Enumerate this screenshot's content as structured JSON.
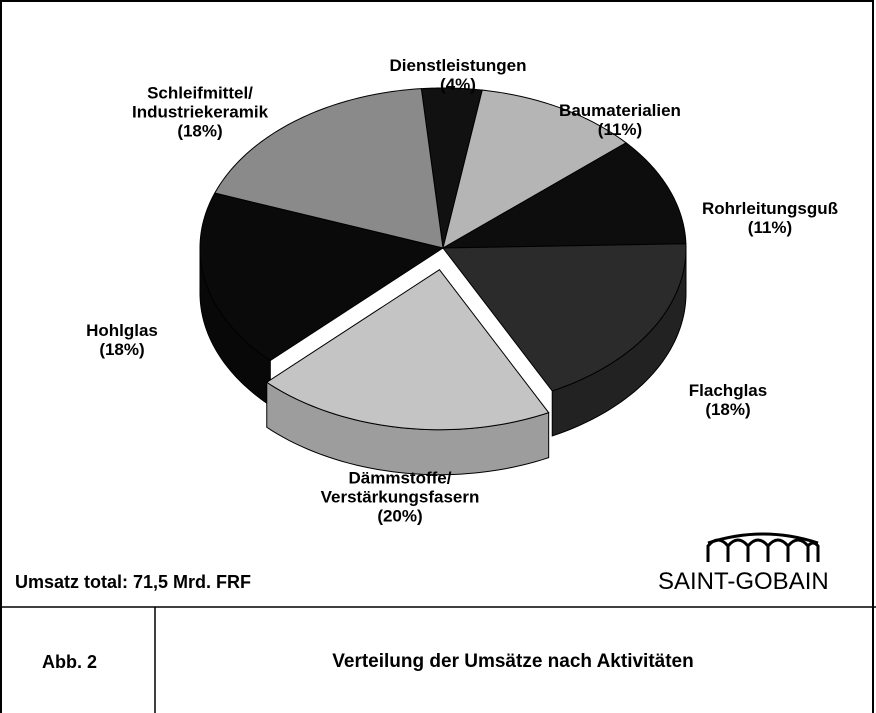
{
  "chart_data": {
    "type": "pie",
    "categories": [
      "Dienstleistungen",
      "Baumaterialien",
      "Rohrleitungsguß",
      "Flachglas",
      "Dämmstoffe/\nVerstärkungsfasern",
      "Hohlglas",
      "Schleifmittel/\nIndustriekeramik"
    ],
    "values": [
      4,
      11,
      11,
      18,
      20,
      18,
      18
    ],
    "value_labels": [
      "(4%)",
      "(11%)",
      "(11%)",
      "(18%)",
      "(20%)",
      "(18%)",
      "(18%)"
    ],
    "colors": [
      "#111111",
      "#b5b5b5",
      "#0d0d0d",
      "#2b2b2b",
      "#c4c4c4",
      "#0a0a0a",
      "#8a8a8a"
    ],
    "exploded": "Dämmstoffe/\nVerstärkungsfasern",
    "annotations": [
      "Umsatz total: 71,5 Mrd. FRF",
      "SAINT-GOBAIN"
    ]
  },
  "footer": {
    "label": "Abb. 2",
    "caption": "Verteilung der Umsätze nach Aktivitäten"
  }
}
